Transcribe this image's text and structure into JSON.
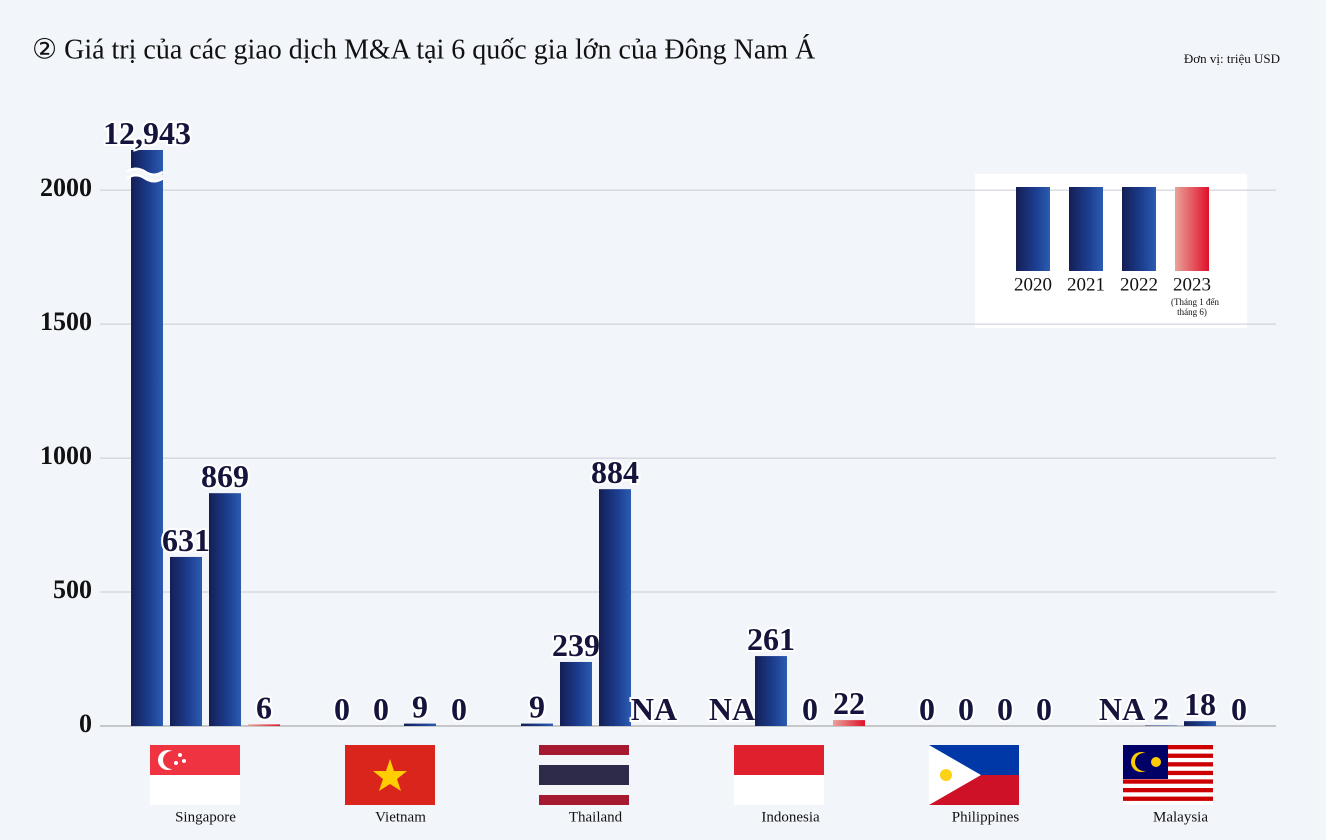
{
  "chart_data": {
    "type": "bar",
    "title": "② Giá trị của các giao dịch M&A tại 6 quốc gia lớn của Đông Nam Á",
    "unit": "Đơn vị: triệu USD",
    "categories": [
      "Singapore",
      "Vietnam",
      "Thailand",
      "Indonesia",
      "Philippines",
      "Malaysia"
    ],
    "series": [
      {
        "name": "2020",
        "color": "#1b3f8f",
        "values": [
          12943,
          0,
          9,
          null,
          0,
          null
        ],
        "value_labels": [
          "12,943",
          "0",
          "9",
          "NA",
          "0",
          "NA"
        ]
      },
      {
        "name": "2021",
        "color": "#1b3f8f",
        "values": [
          631,
          0,
          239,
          261,
          0,
          2
        ],
        "value_labels": [
          "631",
          "0",
          "239",
          "261",
          "0",
          "2"
        ]
      },
      {
        "name": "2022",
        "color": "#1b3f8f",
        "values": [
          869,
          9,
          884,
          0,
          0,
          18
        ],
        "value_labels": [
          "869",
          "9",
          "884",
          "0",
          "0",
          "18"
        ]
      },
      {
        "name": "2023",
        "color": "#e0202c",
        "values": [
          6,
          0,
          null,
          22,
          0,
          0
        ],
        "value_labels": [
          "6",
          "0",
          "NA",
          "22",
          "0",
          "0"
        ],
        "legend_note": "(Tháng 1 đến tháng 6)"
      }
    ],
    "ylim": [
      0,
      2150
    ],
    "yticks": [
      0,
      500,
      1000,
      1500,
      2000
    ],
    "grid": true
  }
}
